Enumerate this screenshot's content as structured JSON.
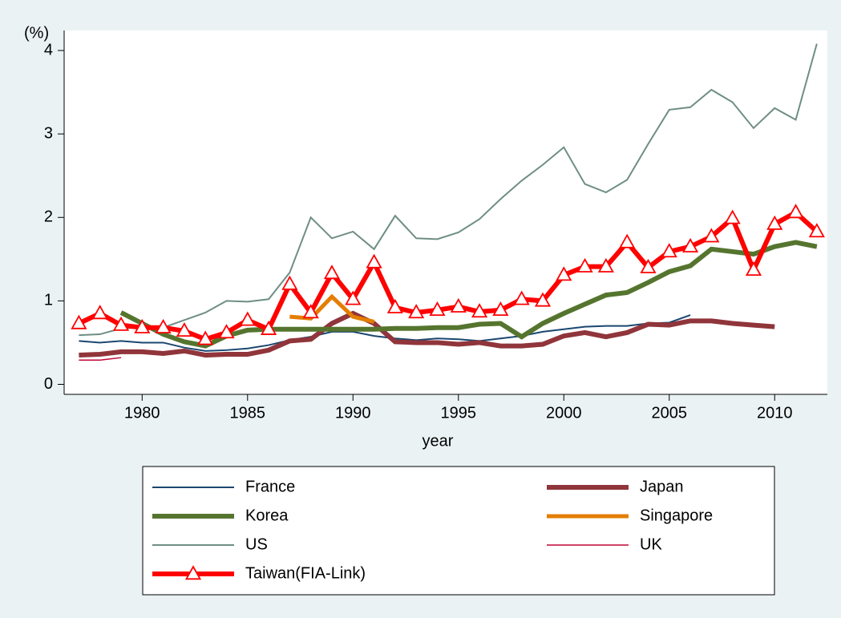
{
  "chart_data": {
    "type": "line",
    "y_label": "(%)",
    "x_label": "year",
    "x": [
      1977,
      1978,
      1979,
      1980,
      1981,
      1982,
      1983,
      1984,
      1985,
      1986,
      1987,
      1988,
      1989,
      1990,
      1991,
      1992,
      1993,
      1994,
      1995,
      1996,
      1997,
      1998,
      1999,
      2000,
      2001,
      2002,
      2003,
      2004,
      2005,
      2006,
      2007,
      2008,
      2009,
      2010,
      2011,
      2012
    ],
    "xlim": [
      1976.3,
      2012.5
    ],
    "xticks": [
      1980,
      1985,
      1990,
      1995,
      2000,
      2005,
      2010
    ],
    "ylim": [
      -0.12,
      4.24
    ],
    "yticks": [
      0,
      1,
      2,
      3,
      4
    ],
    "grid": false,
    "series": [
      {
        "name": "France",
        "color": "#1a476f",
        "line_width": 2,
        "values": [
          0.52,
          0.5,
          0.52,
          0.5,
          0.5,
          0.44,
          0.4,
          0.41,
          0.43,
          0.47,
          0.53,
          0.57,
          0.63,
          0.63,
          0.58,
          0.55,
          0.53,
          0.55,
          0.54,
          0.52,
          0.55,
          0.58,
          0.63,
          0.66,
          0.69,
          0.7,
          0.7,
          0.73,
          0.74,
          0.83,
          null,
          null,
          null,
          null,
          null,
          null
        ]
      },
      {
        "name": "Japan",
        "color": "#90353b",
        "line_width": 6,
        "values": [
          0.35,
          0.36,
          0.39,
          0.39,
          0.37,
          0.4,
          0.35,
          0.36,
          0.36,
          0.41,
          0.52,
          0.54,
          0.73,
          0.85,
          0.73,
          0.51,
          0.5,
          0.5,
          0.48,
          0.5,
          0.46,
          0.46,
          0.48,
          0.58,
          0.62,
          0.57,
          0.62,
          0.72,
          0.71,
          0.76,
          0.76,
          0.73,
          0.71,
          0.69,
          null,
          null
        ]
      },
      {
        "name": "Korea",
        "color": "#55752f",
        "line_width": 6,
        "values": [
          null,
          null,
          0.86,
          0.73,
          0.6,
          0.51,
          0.46,
          0.58,
          0.65,
          0.66,
          0.66,
          0.66,
          0.66,
          0.66,
          0.66,
          0.67,
          0.67,
          0.68,
          0.68,
          0.72,
          0.73,
          0.57,
          0.73,
          0.85,
          0.96,
          1.07,
          1.1,
          1.22,
          1.35,
          1.42,
          1.62,
          1.59,
          1.56,
          1.65,
          1.7,
          1.65
        ]
      },
      {
        "name": "Singapore",
        "color": "#e37e00",
        "line_width": 5,
        "values": [
          null,
          null,
          null,
          null,
          null,
          null,
          null,
          null,
          null,
          null,
          0.81,
          0.79,
          1.05,
          0.81,
          0.75,
          null,
          null,
          null,
          null,
          null,
          null,
          null,
          null,
          null,
          null,
          null,
          null,
          null,
          null,
          null,
          null,
          null,
          null,
          null,
          null,
          null
        ]
      },
      {
        "name": "US",
        "color": "#6e8e84",
        "line_width": 2,
        "values": [
          0.59,
          0.6,
          0.67,
          0.68,
          0.68,
          0.77,
          0.86,
          1.0,
          0.99,
          1.02,
          1.34,
          2.0,
          1.75,
          1.83,
          1.62,
          2.02,
          1.75,
          1.74,
          1.82,
          1.98,
          2.22,
          2.44,
          2.63,
          2.84,
          2.4,
          2.3,
          2.45,
          2.88,
          3.29,
          3.32,
          3.53,
          3.38,
          3.07,
          3.31,
          3.17,
          4.08
        ]
      },
      {
        "name": "UK",
        "color": "#c10534",
        "line_width": 1.5,
        "values": [
          0.29,
          0.29,
          0.32,
          null,
          null,
          null,
          null,
          null,
          null,
          null,
          null,
          null,
          null,
          null,
          null,
          null,
          null,
          null,
          null,
          null,
          null,
          null,
          null,
          null,
          null,
          null,
          null,
          null,
          null,
          null,
          null,
          null,
          null,
          null,
          null,
          null
        ]
      },
      {
        "name": "Taiwan(FIA-Link)",
        "color": "#ff0000",
        "line_width": 6,
        "marker": "triangle",
        "values": [
          0.73,
          0.85,
          0.71,
          0.68,
          0.68,
          0.64,
          0.54,
          0.62,
          0.77,
          0.66,
          1.2,
          0.86,
          1.33,
          1.02,
          1.46,
          0.92,
          0.86,
          0.89,
          0.93,
          0.87,
          0.89,
          1.02,
          1.0,
          1.31,
          1.41,
          1.41,
          1.7,
          1.4,
          1.59,
          1.65,
          1.77,
          1.99,
          1.37,
          1.92,
          2.06,
          1.83
        ]
      }
    ]
  }
}
